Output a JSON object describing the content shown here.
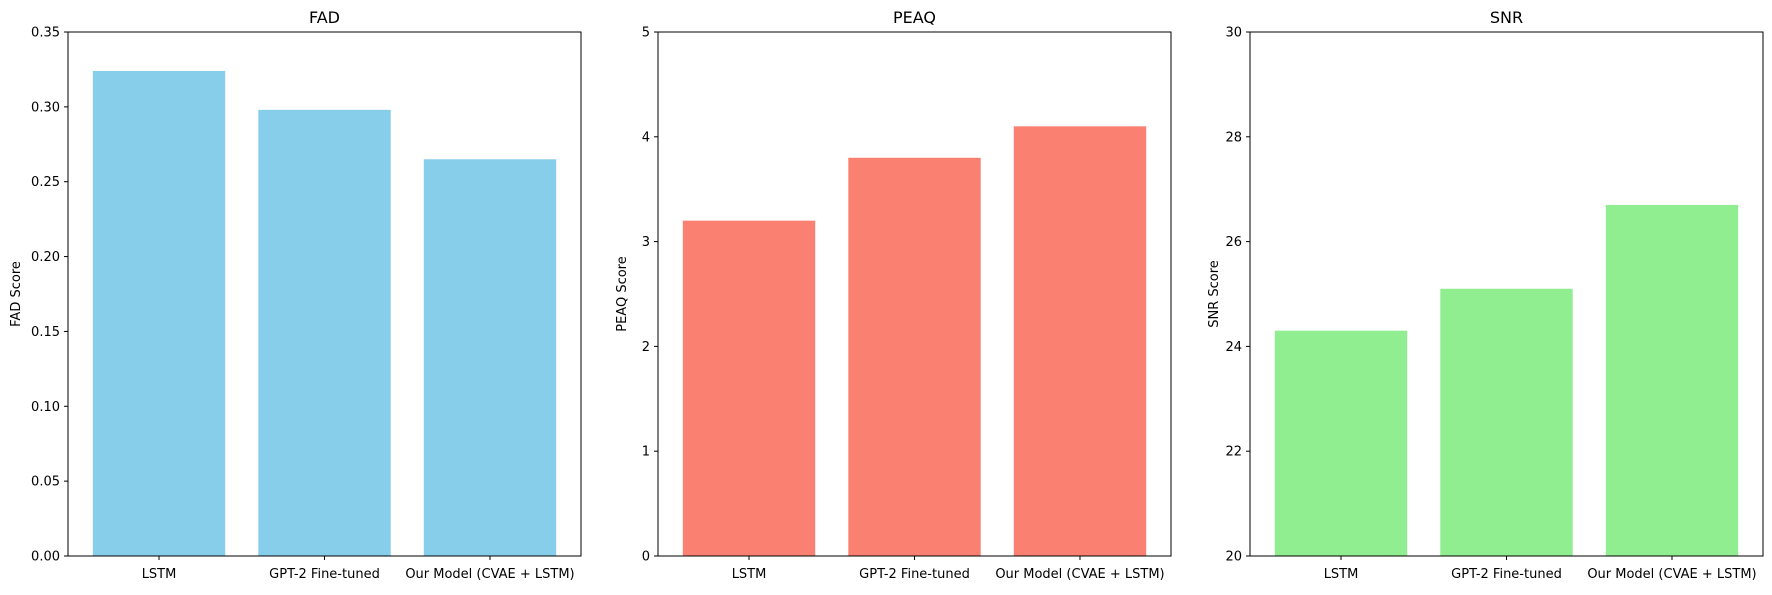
{
  "chart_data": [
    {
      "type": "bar",
      "title": "FAD",
      "xlabel": "",
      "ylabel": "FAD Score",
      "categories": [
        "LSTM",
        "GPT-2 Fine-tuned",
        "Our Model (CVAE + LSTM)"
      ],
      "values": [
        0.324,
        0.298,
        0.265
      ],
      "ylim": [
        0,
        0.35
      ],
      "yticks": [
        0.0,
        0.05,
        0.1,
        0.15,
        0.2,
        0.25,
        0.3,
        0.35
      ],
      "ytick_labels": [
        "0.00",
        "0.05",
        "0.10",
        "0.15",
        "0.20",
        "0.25",
        "0.30",
        "0.35"
      ],
      "color": "#87CEEB",
      "grid": false
    },
    {
      "type": "bar",
      "title": "PEAQ",
      "xlabel": "",
      "ylabel": "PEAQ Score",
      "categories": [
        "LSTM",
        "GPT-2 Fine-tuned",
        "Our Model (CVAE + LSTM)"
      ],
      "values": [
        3.2,
        3.8,
        4.1
      ],
      "ylim": [
        0,
        5
      ],
      "yticks": [
        0,
        1,
        2,
        3,
        4,
        5
      ],
      "ytick_labels": [
        "0",
        "1",
        "2",
        "3",
        "4",
        "5"
      ],
      "color": "#FA8072",
      "grid": false
    },
    {
      "type": "bar",
      "title": "SNR",
      "xlabel": "",
      "ylabel": "SNR Score",
      "categories": [
        "LSTM",
        "GPT-2 Fine-tuned",
        "Our Model (CVAE + LSTM)"
      ],
      "values": [
        24.3,
        25.1,
        26.7
      ],
      "ylim": [
        20,
        30
      ],
      "yticks": [
        20,
        22,
        24,
        26,
        28,
        30
      ],
      "ytick_labels": [
        "20",
        "22",
        "24",
        "26",
        "28",
        "30"
      ],
      "color": "#90EE90",
      "grid": false
    }
  ]
}
